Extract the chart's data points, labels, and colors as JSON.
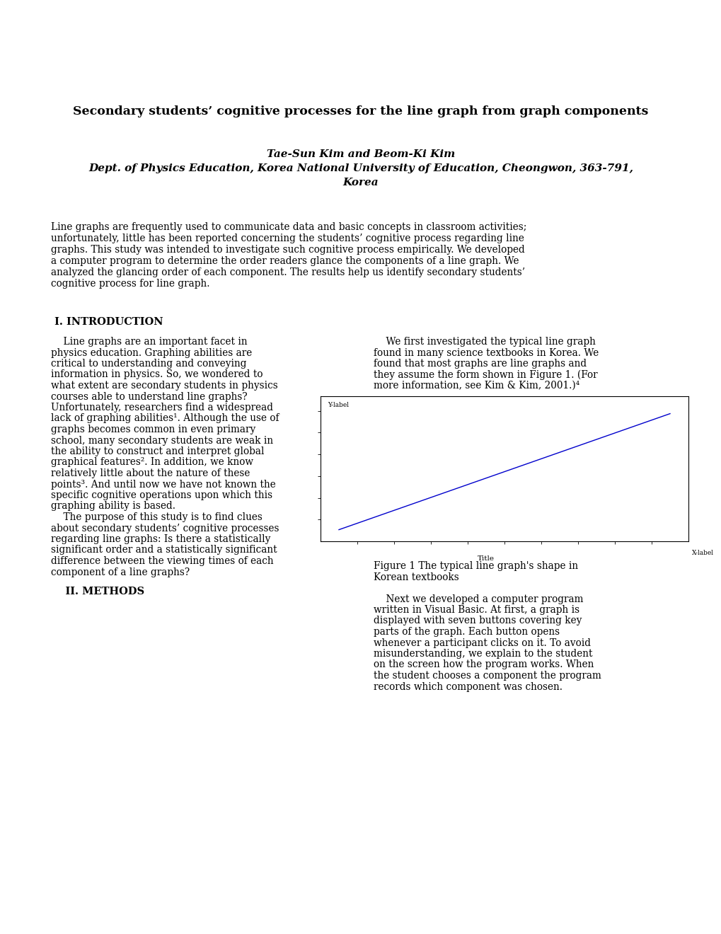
{
  "title": "Secondary students’ cognitive processes for the line graph from graph components",
  "authors": "Tae-Sun Kim and Beom-Ki Kim",
  "affil1": "Dept. of Physics Education, Korea National University of Education, Cheongwon, 363-791,",
  "affil2": "Korea",
  "abstract_lines": [
    "Line graphs are frequently used to communicate data and basic concepts in classroom activities;",
    "unfortunately, little has been reported concerning the students’ cognitive process regarding line",
    "graphs. This study was intended to investigate such cognitive process empirically. We developed",
    "a computer program to determine the order readers glance the components of a line graph. We",
    "analyzed the glancing order of each component. The results help us identify secondary students’",
    "cognitive process for line graph."
  ],
  "sec1_title": " I. INTRODUCTION",
  "sec1_left": [
    "    Line graphs are an important facet in",
    "physics education. Graphing abilities are",
    "critical to understanding and conveying",
    "information in physics. So, we wondered to",
    "what extent are secondary students in physics",
    "courses able to understand line graphs?",
    "Unfortunately, researchers find a widespread",
    "lack of graphing abilities¹. Although the use of",
    "graphs becomes common in even primary",
    "school, many secondary students are weak in",
    "the ability to construct and interpret global",
    "graphical features². In addition, we know",
    "relatively little about the nature of these",
    "points³. And until now we have not known the",
    "specific cognitive operations upon which this",
    "graphing ability is based.",
    "    The purpose of this study is to find clues",
    "about secondary students’ cognitive processes",
    "regarding line graphs: Is there a statistically",
    "significant order and a statistically significant",
    "difference between the viewing times of each",
    "component of a line graphs?"
  ],
  "sec1_right": [
    "    We first investigated the typical line graph",
    "found in many science textbooks in Korea. We",
    "found that most graphs are line graphs and",
    "they assume the form shown in Figure 1. (For",
    "more information, see Kim & Kim, 2001.)⁴"
  ],
  "fig_caption": "Figure 1 The typical line graph's shape in Korean textbooks",
  "sec2_title": "    II. METHODS",
  "sec2_right": [
    "    Next we developed a computer program",
    "written in Visual Basic. At first, a graph is",
    "displayed with seven buttons covering key",
    "parts of the graph. Each button opens",
    "whenever a participant clicks on it. To avoid",
    "misunderstanding, we explain to the student",
    "on the screen how the program works. When",
    "the student chooses a component the program",
    "records which component was chosen."
  ],
  "bg_color": "#ffffff",
  "text_color": "#000000",
  "line_color": "#0000cc"
}
